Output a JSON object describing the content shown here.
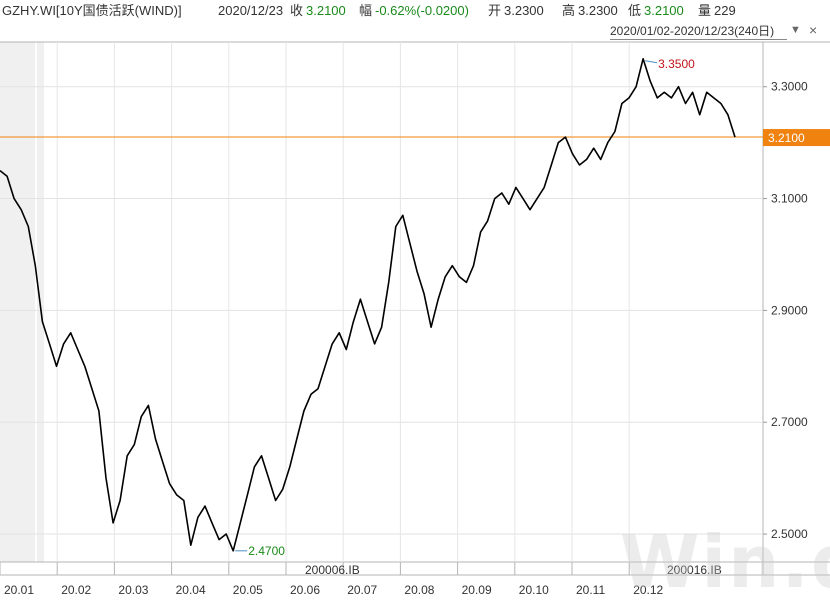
{
  "header": {
    "code": "GZHY.WI[10Y国债活跃(WIND)]",
    "date": "2020/12/23",
    "close_label": "收",
    "close_value": "3.2100",
    "change_label": "幅",
    "change_value": "-0.62%(-0.0200)",
    "open_label": "开",
    "open_value": "3.2300",
    "high_label": "高",
    "high_value": "3.2300",
    "low_label": "低",
    "low_value": "3.2100",
    "volume_label": "量",
    "volume_value": "229"
  },
  "range": {
    "label": "2020/01/02-2020/12/23(240日)"
  },
  "colors": {
    "line": "#000000",
    "price_line": "#f0820f",
    "up_text": "#c0141c",
    "down_text": "#1a8a1a",
    "shade": "#f0f0f0"
  },
  "watermark": "Win.d",
  "chart_data": {
    "type": "line",
    "x_ticks": [
      "20.01",
      "20.02",
      "20.03",
      "20.04",
      "20.05",
      "20.06",
      "20.07",
      "20.08",
      "20.09",
      "20.10",
      "20.11",
      "20.12"
    ],
    "y_ticks": [
      "3.3000",
      "3.1000",
      "2.9000",
      "2.7000",
      "2.5000"
    ],
    "ylim": [
      2.45,
      3.38
    ],
    "current_price": {
      "value": 3.21,
      "label": "3.2100"
    },
    "max_label": {
      "x": 20.07,
      "y": 3.35,
      "text": "3.3500"
    },
    "min_label": {
      "x": 20.03,
      "y": 2.47,
      "text": "2.4700"
    },
    "contract_labels": [
      {
        "text": "200006.IB",
        "x": 20.05
      },
      {
        "text": "200016.IB",
        "x": 20.11
      }
    ],
    "shaded_ranges": [
      [
        20.0,
        20.05
      ],
      [
        20.0525,
        20.0625
      ]
    ],
    "series": [
      {
        "values": [
          [
            20.0,
            3.15
          ],
          [
            20.015,
            3.14
          ],
          [
            20.03,
            3.1
          ],
          [
            20.045,
            3.08
          ],
          [
            20.06,
            3.05
          ],
          [
            20.07,
            2.98
          ],
          [
            20.075,
            2.88
          ],
          [
            20.085,
            2.84
          ],
          [
            20.095,
            2.8
          ],
          [
            20.11,
            2.84
          ],
          [
            20.125,
            2.86
          ],
          [
            20.14,
            2.83
          ],
          [
            20.16,
            2.8
          ],
          [
            20.175,
            2.76
          ],
          [
            20.19,
            2.72
          ],
          [
            20.2,
            2.6
          ],
          [
            20.21,
            2.52
          ],
          [
            20.22,
            2.56
          ],
          [
            20.235,
            2.64
          ],
          [
            20.25,
            2.66
          ],
          [
            20.26,
            2.71
          ],
          [
            20.27,
            2.73
          ],
          [
            20.28,
            2.67
          ],
          [
            20.29,
            2.63
          ],
          [
            20.3,
            2.59
          ],
          [
            20.31,
            2.57
          ],
          [
            20.32,
            2.56
          ],
          [
            20.33,
            2.48
          ],
          [
            20.345,
            2.53
          ],
          [
            20.355,
            2.55
          ],
          [
            20.37,
            2.52
          ],
          [
            20.38,
            2.49
          ],
          [
            20.39,
            2.5
          ],
          [
            20.395,
            2.47
          ],
          [
            20.41,
            2.52
          ],
          [
            20.42,
            2.57
          ],
          [
            20.43,
            2.62
          ],
          [
            20.44,
            2.64
          ],
          [
            20.45,
            2.6
          ],
          [
            20.46,
            2.56
          ],
          [
            20.47,
            2.58
          ],
          [
            20.48,
            2.62
          ],
          [
            20.49,
            2.67
          ],
          [
            20.5,
            2.72
          ],
          [
            20.51,
            2.75
          ],
          [
            20.52,
            2.76
          ],
          [
            20.53,
            2.8
          ],
          [
            20.54,
            2.84
          ],
          [
            20.55,
            2.86
          ],
          [
            20.56,
            2.83
          ],
          [
            20.57,
            2.88
          ],
          [
            20.58,
            2.92
          ],
          [
            20.59,
            2.88
          ],
          [
            20.6,
            2.84
          ],
          [
            20.61,
            2.87
          ],
          [
            20.62,
            2.95
          ],
          [
            20.63,
            3.05
          ],
          [
            20.64,
            3.07
          ],
          [
            20.65,
            3.02
          ],
          [
            20.66,
            2.97
          ],
          [
            20.67,
            2.93
          ],
          [
            20.68,
            2.87
          ],
          [
            20.69,
            2.92
          ],
          [
            20.7,
            2.96
          ],
          [
            20.71,
            2.98
          ],
          [
            20.72,
            2.96
          ],
          [
            20.73,
            2.95
          ],
          [
            20.74,
            2.98
          ],
          [
            20.75,
            3.04
          ],
          [
            20.76,
            3.06
          ],
          [
            20.77,
            3.1
          ],
          [
            20.78,
            3.11
          ],
          [
            20.79,
            3.09
          ],
          [
            20.8,
            3.12
          ],
          [
            20.81,
            3.1
          ],
          [
            20.82,
            3.08
          ],
          [
            20.83,
            3.1
          ],
          [
            20.84,
            3.12
          ],
          [
            20.85,
            3.16
          ],
          [
            20.86,
            3.2
          ],
          [
            20.87,
            3.21
          ],
          [
            20.88,
            3.18
          ],
          [
            20.89,
            3.16
          ],
          [
            20.9,
            3.17
          ],
          [
            20.91,
            3.19
          ],
          [
            20.92,
            3.17
          ],
          [
            20.93,
            3.2
          ],
          [
            20.94,
            3.22
          ],
          [
            20.95,
            3.27
          ],
          [
            20.96,
            3.28
          ],
          [
            20.97,
            3.3
          ],
          [
            20.975,
            3.35
          ],
          [
            20.98,
            3.31
          ],
          [
            20.985,
            3.28
          ],
          [
            20.99,
            3.29
          ],
          [
            20.995,
            3.28
          ],
          [
            21.0,
            3.3
          ],
          [
            21.01,
            3.27
          ],
          [
            21.02,
            3.29
          ],
          [
            21.03,
            3.25
          ],
          [
            21.04,
            3.29
          ],
          [
            21.05,
            3.28
          ],
          [
            21.06,
            3.27
          ],
          [
            21.07,
            3.25
          ],
          [
            21.08,
            3.21
          ]
        ]
      }
    ]
  }
}
